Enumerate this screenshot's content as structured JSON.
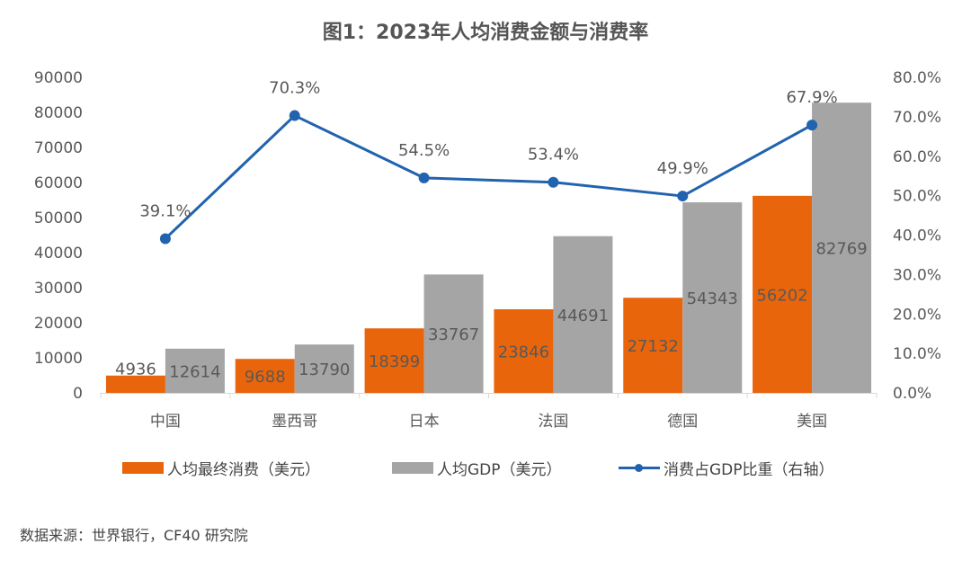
{
  "chart_data": {
    "type": "bar+line",
    "title": "图1：2023年人均消费金额与消费率",
    "categories": [
      "中国",
      "墨西哥",
      "日本",
      "法国",
      "德国",
      "美国"
    ],
    "series": [
      {
        "name": "人均最终消费（美元）",
        "type": "bar",
        "axis": "left",
        "color": "#E8650C",
        "values": [
          4936,
          9688,
          18399,
          23846,
          27132,
          56202
        ],
        "labels": [
          "4936",
          "9688",
          "18399",
          "23846",
          "27132",
          "56202"
        ]
      },
      {
        "name": "人均GDP（美元）",
        "type": "bar",
        "axis": "left",
        "color": "#A5A5A5",
        "values": [
          12614,
          13790,
          33767,
          44691,
          54343,
          82769
        ],
        "labels": [
          "12614",
          "13790",
          "33767",
          "44691",
          "54343",
          "82769"
        ]
      },
      {
        "name": "消费占GDP比重（右轴）",
        "type": "line",
        "axis": "right",
        "color": "#2163AE",
        "values": [
          39.1,
          70.3,
          54.5,
          53.4,
          49.9,
          67.9
        ],
        "labels": [
          "39.1%",
          "70.3%",
          "54.5%",
          "53.4%",
          "49.9%",
          "67.9%"
        ]
      }
    ],
    "y_left": {
      "min": 0,
      "max": 90000,
      "ticks": [
        "0",
        "10000",
        "20000",
        "30000",
        "40000",
        "50000",
        "60000",
        "70000",
        "80000",
        "90000"
      ]
    },
    "y_right": {
      "min": 0,
      "max": 80,
      "ticks": [
        "0.0%",
        "10.0%",
        "20.0%",
        "30.0%",
        "40.0%",
        "50.0%",
        "60.0%",
        "70.0%",
        "80.0%"
      ]
    },
    "grid": false,
    "legend_position": "bottom"
  },
  "footer": {
    "source": "数据来源：世界银行，CF40 研究院"
  }
}
